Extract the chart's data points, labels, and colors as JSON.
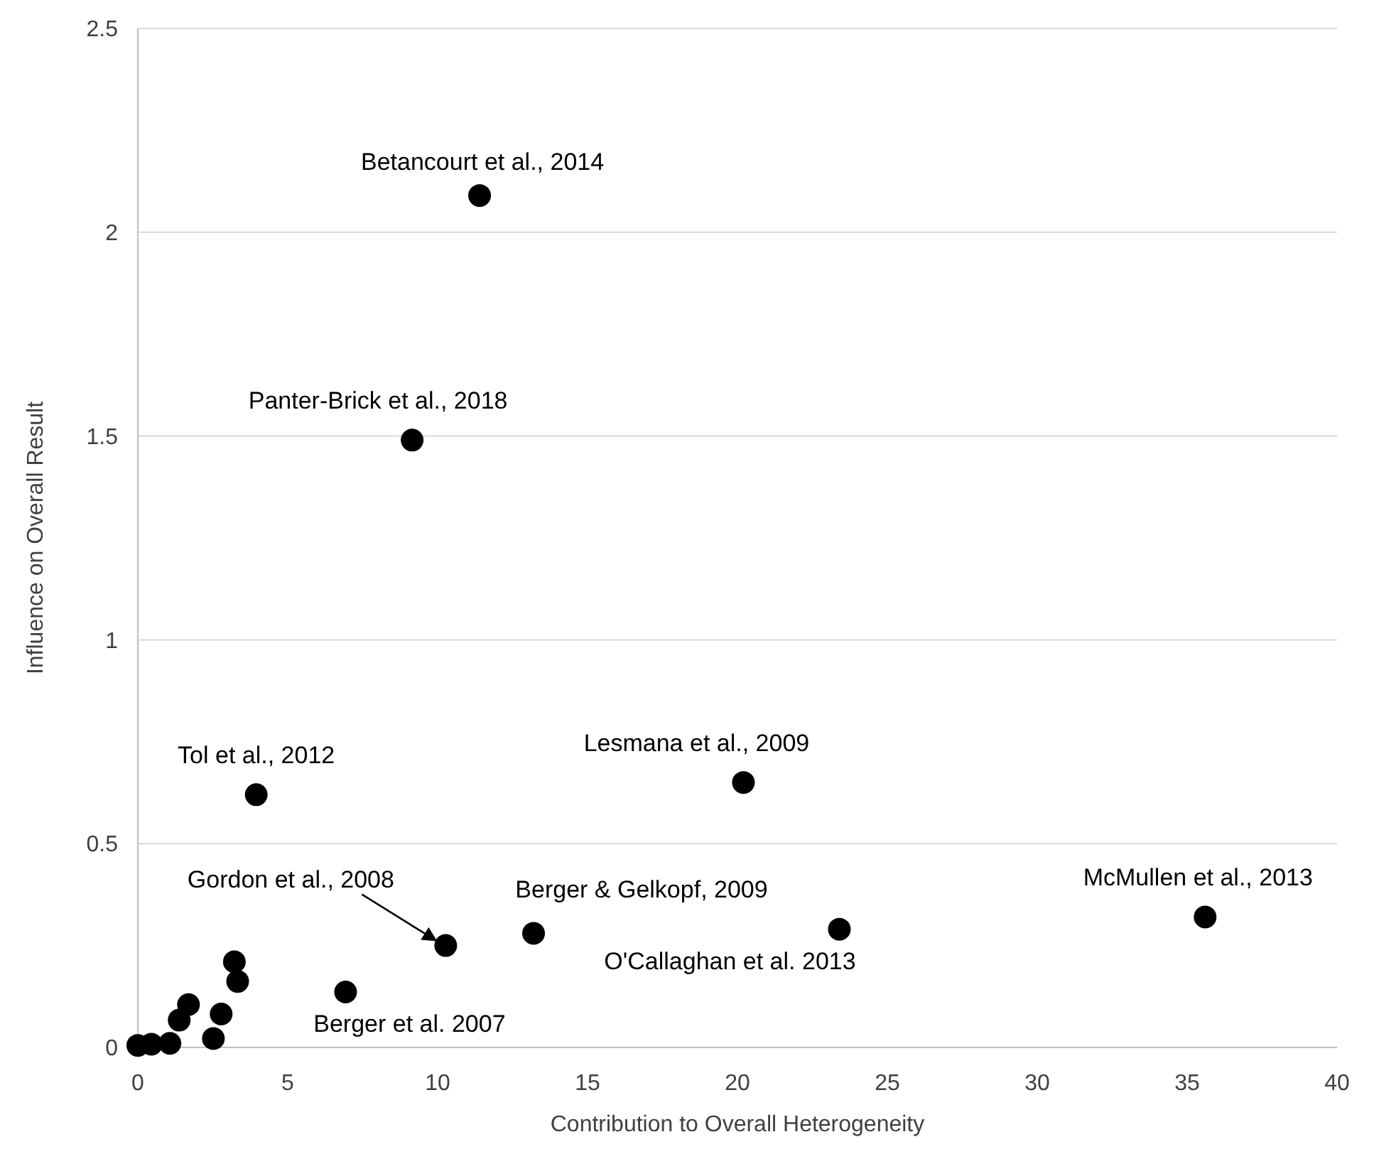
{
  "chart_data": {
    "type": "scatter",
    "xlabel": "Contribution to Overall Heterogeneity",
    "ylabel": "Influence on Overall Result",
    "x": [
      0,
      0.45,
      1.07,
      1.38,
      1.69,
      2.52,
      2.78,
      3.22,
      3.33,
      3.95,
      6.93,
      9.15,
      10.27,
      11.4,
      13.2,
      20.2,
      23.4,
      35.6
    ],
    "series": [
      {
        "color": "#000000",
        "values": [
          0.005,
          0.008,
          0.01,
          0.067,
          0.105,
          0.022,
          0.082,
          0.21,
          0.162,
          0.62,
          0.136,
          1.49,
          0.25,
          2.09,
          0.28,
          0.65,
          0.29,
          0.32
        ]
      }
    ],
    "xlim": [
      0,
      40
    ],
    "xticks": [
      0,
      5,
      10,
      15,
      20,
      25,
      30,
      35,
      40
    ],
    "ylim": [
      0,
      2.5
    ],
    "yticks": [
      0,
      0.5,
      1,
      1.5,
      2,
      2.5
    ],
    "grid": "y",
    "marker": "circle",
    "annotations": [
      {
        "text": "Betancourt et al., 2014",
        "x": 11.4,
        "y": 2.09
      },
      {
        "text": "Panter-Brick et al., 2018",
        "x": 9.15,
        "y": 1.49
      },
      {
        "text": "Tol et al., 2012",
        "x": 3.95,
        "y": 0.62
      },
      {
        "text": "Lesmana et al., 2009",
        "x": 20.2,
        "y": 0.65
      },
      {
        "text": "Gordon et al., 2008",
        "x": 10.27,
        "y": 0.25
      },
      {
        "text": "Berger & Gelkopf, 2009",
        "x": 13.2,
        "y": 0.28
      },
      {
        "text": "O'Callaghan et al. 2013",
        "x": 23.4,
        "y": 0.29
      },
      {
        "text": "McMullen et al., 2013",
        "x": 35.6,
        "y": 0.32
      },
      {
        "text": "Berger et al. 2007",
        "x": 6.93,
        "y": 0.136
      }
    ]
  }
}
